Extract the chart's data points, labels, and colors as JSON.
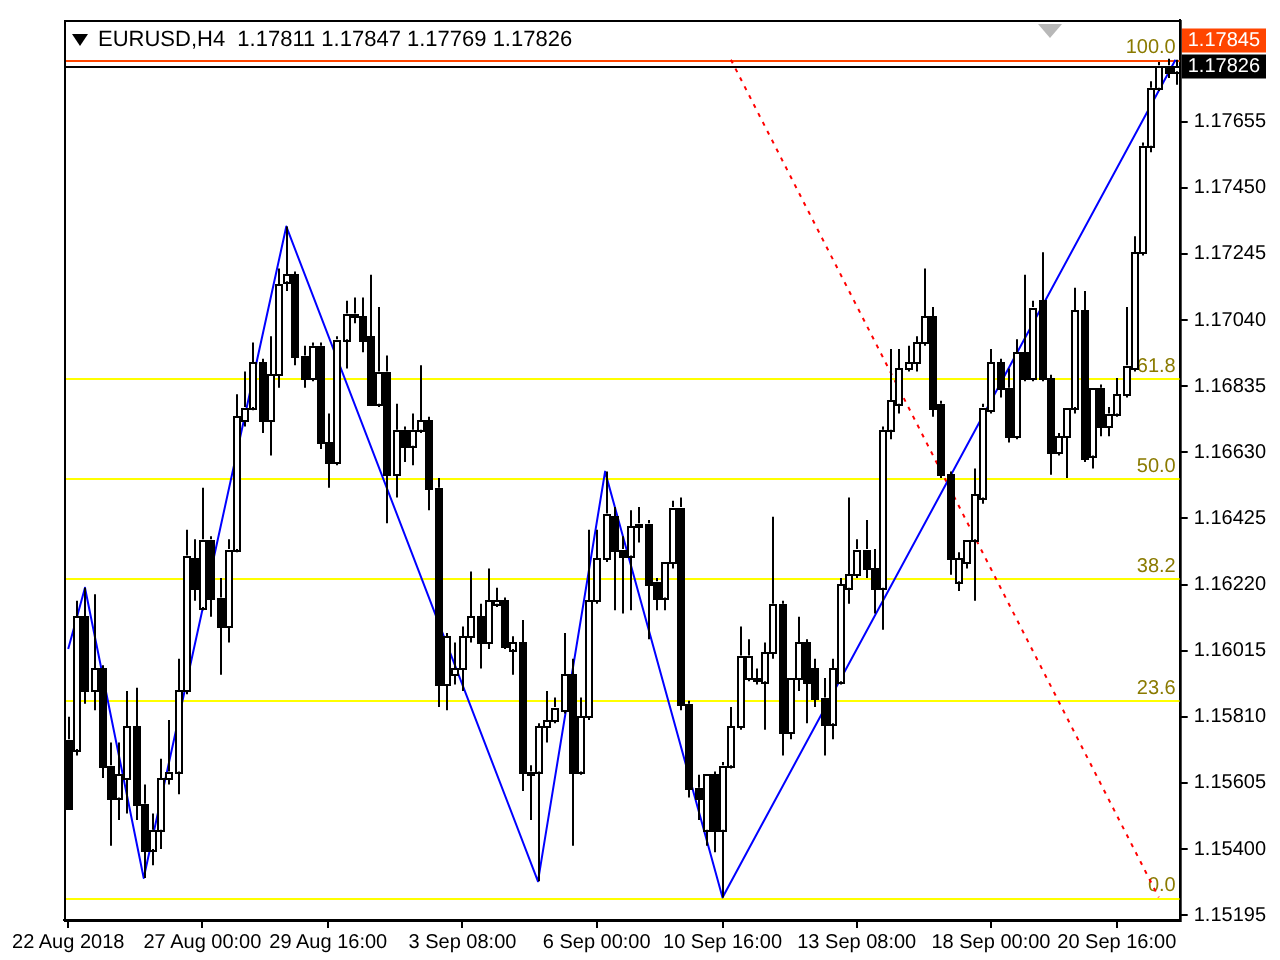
{
  "chart_data": {
    "type": "candlestick",
    "title": "EURUSD,H4  1.17811 1.17847 1.17769 1.17826",
    "categories": [
      "22 Aug 2018",
      null,
      null,
      null,
      null,
      null,
      null,
      null,
      null,
      null,
      null,
      null,
      null,
      null,
      null,
      null,
      "27 Aug 00:00",
      null,
      null,
      null,
      null,
      null,
      null,
      null,
      null,
      null,
      null,
      null,
      null,
      null,
      null,
      "29 Aug 16:00",
      null,
      null,
      null,
      null,
      null,
      null,
      null,
      null,
      null,
      null,
      null,
      null,
      null,
      null,
      null,
      "3 Sep 08:00",
      null,
      null,
      null,
      null,
      null,
      null,
      null,
      null,
      null,
      null,
      null,
      null,
      null,
      null,
      null,
      "6 Sep 00:00",
      null,
      null,
      null,
      null,
      null,
      null,
      null,
      null,
      null,
      null,
      null,
      null,
      null,
      null,
      "10 Sep 16:00",
      null,
      null,
      null,
      null,
      null,
      null,
      null,
      null,
      null,
      null,
      null,
      null,
      null,
      null,
      null,
      "13 Sep 08:00",
      null,
      null,
      null,
      null,
      null,
      null,
      null,
      null,
      null,
      null,
      null,
      null,
      null,
      null,
      null,
      "18 Sep 00:00",
      null,
      null,
      null,
      null,
      null,
      null,
      null,
      null,
      null,
      null,
      null,
      null,
      null,
      null,
      "20 Sep 16:00",
      null,
      null,
      null,
      null,
      null,
      null,
      null
    ],
    "ohlc": [
      [
        1.1574,
        1.1581,
        1.1553,
        1.1553
      ],
      [
        1.1571,
        1.1617,
        1.1569,
        1.1612
      ],
      [
        1.1612,
        1.1621,
        1.1585,
        1.1589
      ],
      [
        1.1589,
        1.1619,
        1.1583,
        1.1596
      ],
      [
        1.1596,
        1.1597,
        1.1562,
        1.1566
      ],
      [
        1.1566,
        1.1573,
        1.1541,
        1.1556
      ],
      [
        1.1556,
        1.1573,
        1.1549,
        1.1563
      ],
      [
        1.1562,
        1.1589,
        1.1551,
        1.1578
      ],
      [
        1.1578,
        1.159,
        1.1549,
        1.1554
      ],
      [
        1.1554,
        1.156,
        1.1531,
        1.154
      ],
      [
        1.154,
        1.1551,
        1.1535,
        1.1546
      ],
      [
        1.1546,
        1.1568,
        1.154,
        1.1562
      ],
      [
        1.1562,
        1.158,
        1.156,
        1.1564
      ],
      [
        1.1564,
        1.1599,
        1.1557,
        1.1589
      ],
      [
        1.1589,
        1.1639,
        1.1588,
        1.1631
      ],
      [
        1.163,
        1.1636,
        1.1617,
        1.1621
      ],
      [
        1.1615,
        1.1652,
        1.1614,
        1.1636
      ],
      [
        1.1636,
        1.1637,
        1.1612,
        1.1618
      ],
      [
        1.1618,
        1.1624,
        1.1594,
        1.1609
      ],
      [
        1.1609,
        1.1636,
        1.1604,
        1.1633
      ],
      [
        1.1633,
        1.1681,
        1.1632,
        1.1674
      ],
      [
        1.1673,
        1.1688,
        1.1671,
        1.1677
      ],
      [
        1.1677,
        1.1697,
        1.1676,
        1.1691
      ],
      [
        1.1691,
        1.1692,
        1.1669,
        1.1673
      ],
      [
        1.1673,
        1.1699,
        1.1662,
        1.1687
      ],
      [
        1.1687,
        1.172,
        1.1683,
        1.1715
      ],
      [
        1.1716,
        1.1733,
        1.1713,
        1.1718
      ],
      [
        1.1718,
        1.1719,
        1.169,
        1.1693
      ],
      [
        1.1693,
        1.1696,
        1.1683,
        1.1686
      ],
      [
        1.1686,
        1.1697,
        1.1685,
        1.1696
      ],
      [
        1.1696,
        1.1697,
        1.1664,
        1.1666
      ],
      [
        1.1666,
        1.1675,
        1.1652,
        1.166
      ],
      [
        1.166,
        1.1699,
        1.1659,
        1.1698
      ],
      [
        1.1698,
        1.171,
        1.1689,
        1.1706
      ],
      [
        1.1705,
        1.1711,
        1.1703,
        1.1706
      ],
      [
        1.1705,
        1.1711,
        1.1694,
        1.1698
      ],
      [
        1.1699,
        1.1718,
        1.1678,
        1.1678
      ],
      [
        1.1678,
        1.1708,
        1.1677,
        1.1688
      ],
      [
        1.1688,
        1.1693,
        1.1641,
        1.1656
      ],
      [
        1.1656,
        1.1678,
        1.1649,
        1.167
      ],
      [
        1.167,
        1.1671,
        1.166,
        1.1665
      ],
      [
        1.1665,
        1.1675,
        1.1659,
        1.167
      ],
      [
        1.167,
        1.169,
        1.1669,
        1.1673
      ],
      [
        1.1673,
        1.1674,
        1.1645,
        1.1652
      ],
      [
        1.1652,
        1.1655,
        1.1584,
        1.1591
      ],
      [
        1.1591,
        1.1607,
        1.1583,
        1.1606
      ],
      [
        1.1594,
        1.1604,
        1.1591,
        1.1596
      ],
      [
        1.1596,
        1.1609,
        1.1589,
        1.1606
      ],
      [
        1.1606,
        1.1626,
        1.1604,
        1.1612
      ],
      [
        1.1612,
        1.1616,
        1.1596,
        1.1604
      ],
      [
        1.1604,
        1.1627,
        1.1602,
        1.1617
      ],
      [
        1.1616,
        1.1621,
        1.1615,
        1.1617
      ],
      [
        1.1617,
        1.1618,
        1.1602,
        1.1603
      ],
      [
        1.1602,
        1.1606,
        1.1594,
        1.1604
      ],
      [
        1.1604,
        1.1611,
        1.1558,
        1.1564
      ],
      [
        1.1564,
        1.1566,
        1.1549,
        1.1563
      ],
      [
        1.1564,
        1.1579,
        1.153,
        1.1578
      ],
      [
        1.1578,
        1.1589,
        1.1573,
        1.158
      ],
      [
        1.158,
        1.1587,
        1.1579,
        1.1584
      ],
      [
        1.1583,
        1.1607,
        1.1582,
        1.1594
      ],
      [
        1.1594,
        1.1599,
        1.1541,
        1.1564
      ],
      [
        1.1564,
        1.1587,
        1.1563,
        1.1581
      ],
      [
        1.1581,
        1.1639,
        1.158,
        1.1617
      ],
      [
        1.1617,
        1.1639,
        1.1616,
        1.163
      ],
      [
        1.163,
        1.1657,
        1.1629,
        1.1644
      ],
      [
        1.1643,
        1.1646,
        1.1614,
        1.1633
      ],
      [
        1.1633,
        1.1637,
        1.1613,
        1.1631
      ],
      [
        1.1631,
        1.1645,
        1.1614,
        1.164
      ],
      [
        1.164,
        1.1646,
        1.1635,
        1.1641
      ],
      [
        1.1641,
        1.1642,
        1.1605,
        1.1622
      ],
      [
        1.1623,
        1.1624,
        1.1614,
        1.1618
      ],
      [
        1.1618,
        1.1629,
        1.1614,
        1.1629
      ],
      [
        1.1629,
        1.1648,
        1.1627,
        1.1646
      ],
      [
        1.1646,
        1.1649,
        1.1583,
        1.1585
      ],
      [
        1.1585,
        1.1586,
        1.1556,
        1.1559
      ],
      [
        1.1559,
        1.1563,
        1.1549,
        1.1556
      ],
      [
        1.1546,
        1.1563,
        1.1541,
        1.1563
      ],
      [
        1.1563,
        1.1564,
        1.1539,
        1.1546
      ],
      [
        1.1546,
        1.1567,
        1.1525,
        1.1566
      ],
      [
        1.1566,
        1.1584,
        1.1565,
        1.1578
      ],
      [
        1.1578,
        1.1609,
        1.1577,
        1.16
      ],
      [
        1.1593,
        1.1605,
        1.1592,
        1.16
      ],
      [
        1.1593,
        1.1596,
        1.1591,
        1.1593
      ],
      [
        1.1592,
        1.1604,
        1.1577,
        1.1601
      ],
      [
        1.1601,
        1.1643,
        1.1599,
        1.1616
      ],
      [
        1.1616,
        1.1617,
        1.1569,
        1.1576
      ],
      [
        1.1576,
        1.1593,
        1.1574,
        1.1593
      ],
      [
        1.1593,
        1.1612,
        1.1589,
        1.1604
      ],
      [
        1.1604,
        1.1605,
        1.1579,
        1.1592
      ],
      [
        1.1596,
        1.1599,
        1.1584,
        1.1587
      ],
      [
        1.1587,
        1.1593,
        1.1569,
        1.1579
      ],
      [
        1.1579,
        1.1599,
        1.1574,
        1.1596
      ],
      [
        1.1592,
        1.1624,
        1.1591,
        1.1622
      ],
      [
        1.1621,
        1.1649,
        1.1616,
        1.1625
      ],
      [
        1.1625,
        1.1636,
        1.1624,
        1.1633
      ],
      [
        1.1633,
        1.1642,
        1.1624,
        1.1627
      ],
      [
        1.1627,
        1.1633,
        1.1613,
        1.1621
      ],
      [
        1.1621,
        1.1671,
        1.1608,
        1.167
      ],
      [
        1.167,
        1.1695,
        1.1667,
        1.1679
      ],
      [
        1.1678,
        1.1695,
        1.1675,
        1.1689
      ],
      [
        1.1689,
        1.1696,
        1.1688,
        1.1691
      ],
      [
        1.1691,
        1.1699,
        1.1688,
        1.1697
      ],
      [
        1.1697,
        1.172,
        1.1696,
        1.1705
      ],
      [
        1.1705,
        1.1708,
        1.1674,
        1.1677
      ],
      [
        1.1678,
        1.1679,
        1.1655,
        1.1656
      ],
      [
        1.1656,
        1.1657,
        1.1625,
        1.163
      ],
      [
        1.1623,
        1.1632,
        1.162,
        1.163
      ],
      [
        1.1629,
        1.1636,
        1.1627,
        1.1636
      ],
      [
        1.1636,
        1.1658,
        1.1617,
        1.165
      ],
      [
        1.1649,
        1.1678,
        1.1647,
        1.1677
      ],
      [
        1.1676,
        1.1695,
        1.1675,
        1.1691
      ],
      [
        1.1691,
        1.1692,
        1.168,
        1.1683
      ],
      [
        1.1683,
        1.1689,
        1.1666,
        1.1668
      ],
      [
        1.1668,
        1.1698,
        1.1667,
        1.1694
      ],
      [
        1.1694,
        1.1718,
        1.1685,
        1.1686
      ],
      [
        1.1686,
        1.171,
        1.1685,
        1.1708
      ],
      [
        1.171,
        1.1725,
        1.1685,
        1.1686
      ],
      [
        1.1686,
        1.1687,
        1.1656,
        1.1663
      ],
      [
        1.1663,
        1.1669,
        1.1662,
        1.1668
      ],
      [
        1.1668,
        1.1677,
        1.1655,
        1.1677
      ],
      [
        1.1677,
        1.1714,
        1.1675,
        1.1707
      ],
      [
        1.1707,
        1.1713,
        1.166,
        1.1661
      ],
      [
        1.1662,
        1.1683,
        1.1658,
        1.1683
      ],
      [
        1.1683,
        1.1684,
        1.1668,
        1.1671
      ],
      [
        1.1671,
        1.1677,
        1.1668,
        1.1675
      ],
      [
        1.1675,
        1.1686,
        1.1674,
        1.1681
      ],
      [
        1.1681,
        1.1708,
        1.168,
        1.169
      ],
      [
        1.1689,
        1.173,
        1.1688,
        1.1725
      ],
      [
        1.1725,
        1.1759,
        1.1724,
        1.1758
      ],
      [
        1.1758,
        1.1778,
        1.1756,
        1.1776
      ],
      [
        1.1776,
        1.1784,
        1.1775,
        1.1783
      ],
      [
        1.1783,
        1.1785,
        1.1779,
        1.1781
      ],
      [
        1.17811,
        1.17847,
        1.17769,
        1.17826
      ]
    ],
    "series": [
      {
        "type": "line",
        "color": "#0000ff",
        "values": [
          1.1602,
          null,
          1.1621,
          null,
          null,
          null,
          null,
          null,
          null,
          1.1531,
          null,
          null,
          null,
          null,
          null,
          null,
          null,
          null,
          null,
          null,
          null,
          null,
          null,
          null,
          null,
          null,
          1.1733,
          null,
          null,
          null,
          null,
          null,
          null,
          null,
          null,
          null,
          null,
          null,
          null,
          null,
          null,
          null,
          null,
          null,
          null,
          null,
          null,
          null,
          null,
          null,
          null,
          null,
          null,
          null,
          null,
          null,
          1.153,
          null,
          null,
          null,
          null,
          null,
          null,
          null,
          1.1657,
          null,
          null,
          null,
          null,
          null,
          null,
          null,
          null,
          null,
          null,
          null,
          null,
          null,
          1.1525,
          null,
          null,
          null,
          null,
          null,
          null,
          null,
          null,
          null,
          null,
          null,
          null,
          null,
          null,
          null,
          null,
          null,
          null,
          null,
          null,
          null,
          null,
          null,
          null,
          null,
          null,
          null,
          null,
          null,
          null,
          null,
          null,
          null,
          null,
          null,
          null,
          null,
          null,
          null,
          null,
          null,
          null,
          null,
          null,
          null,
          null,
          null,
          null,
          null,
          null,
          null,
          null,
          null,
          1.17847
        ]
      },
      {
        "type": "line",
        "color": "#ff0000",
        "line_style": "dotted",
        "values": [
          null,
          null,
          null,
          null,
          null,
          null,
          null,
          null,
          null,
          null,
          null,
          null,
          null,
          null,
          null,
          null,
          null,
          null,
          null,
          null,
          null,
          null,
          null,
          null,
          null,
          null,
          null,
          null,
          null,
          null,
          null,
          null,
          null,
          null,
          null,
          null,
          null,
          null,
          null,
          null,
          null,
          null,
          null,
          null,
          null,
          null,
          null,
          null,
          null,
          null,
          null,
          null,
          null,
          null,
          null,
          null,
          null,
          null,
          null,
          null,
          null,
          null,
          null,
          null,
          null,
          null,
          null,
          null,
          null,
          null,
          null,
          null,
          null,
          null,
          null,
          null,
          null,
          null,
          null,
          1.17847,
          null,
          null,
          null,
          null,
          null,
          null,
          null,
          null,
          null,
          null,
          null,
          null,
          null,
          null,
          null,
          null,
          null,
          null,
          null,
          null,
          null,
          null,
          null,
          null,
          null,
          null,
          null,
          null,
          null,
          null,
          null,
          null,
          null,
          null,
          null,
          null,
          null,
          null,
          null,
          null,
          null,
          null,
          null,
          null,
          null,
          null,
          null,
          null,
          null,
          null,
          1.1525,
          null,
          null
        ]
      }
    ],
    "ylim": [
      1.1518,
      1.1797
    ],
    "yticks": [
      1.17655,
      {
        "value": 1.1745,
        "label": "1.17450"
      },
      1.17245,
      {
        "value": 1.1704,
        "label": "1.17040"
      },
      1.16835,
      {
        "value": 1.1663,
        "label": "1.16630"
      },
      1.16425,
      {
        "value": 1.1622,
        "label": "1.16220"
      },
      1.16015,
      {
        "value": 1.1581,
        "label": "1.15810"
      },
      1.15605,
      {
        "value": 1.154,
        "label": "1.15400"
      },
      1.15195
    ],
    "ref_lines": [
      {
        "axis": "y",
        "value": 1.1525,
        "color": "#ffff00"
      },
      {
        "axis": "y",
        "value": 1.1586,
        "color": "#ffff00"
      },
      {
        "axis": "y",
        "value": 1.1624,
        "color": "#ffff00"
      },
      {
        "axis": "y",
        "value": 1.1655,
        "color": "#ffff00"
      },
      {
        "axis": "y",
        "value": 1.1686,
        "color": "#ffff00"
      },
      {
        "axis": "y",
        "value": 1.17847,
        "color": "#ffff00"
      },
      {
        "axis": "y",
        "value": 1.17845,
        "label": "1.17845",
        "color": "#ff4500",
        "line_style": "solid"
      },
      {
        "axis": "y",
        "value": 1.17826,
        "label": "1.17826",
        "color": "#000000",
        "line_style": "solid"
      }
    ],
    "annotations": [
      {
        "text": "0.0",
        "y": 1.1525
      },
      {
        "text": "23.6",
        "y": 1.1586
      },
      {
        "text": "38.2",
        "y": 1.1624
      },
      {
        "text": "50.0",
        "y": 1.1655
      },
      {
        "text": "61.8",
        "y": 1.1686
      },
      {
        "text": "100.0",
        "y": 1.17847
      }
    ],
    "grid": false,
    "legend": false
  }
}
